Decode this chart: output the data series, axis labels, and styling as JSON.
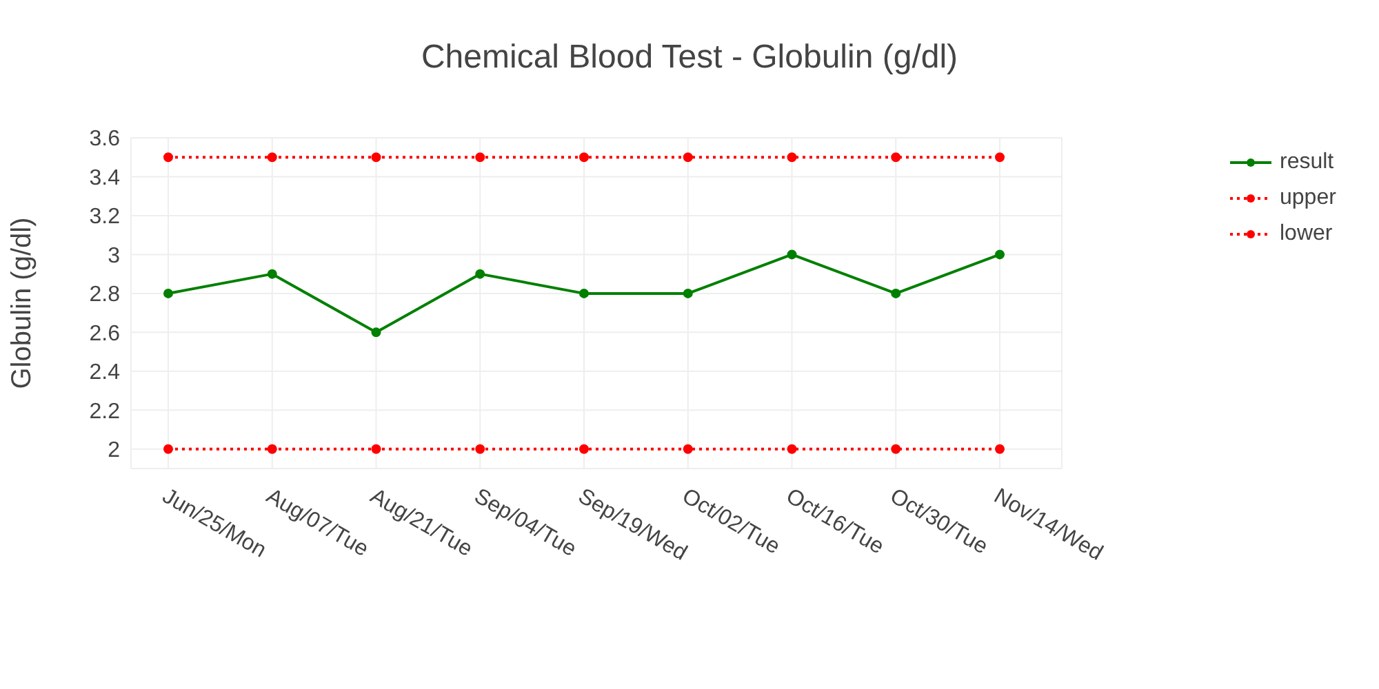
{
  "chart_data": {
    "type": "line",
    "title": "Chemical Blood Test - Globulin  (g/dl)",
    "ylabel": "Globulin  (g/dl)",
    "categories": [
      "Jun/25/Mon",
      "Aug/07/Tue",
      "Aug/21/Tue",
      "Sep/04/Tue",
      "Sep/19/Wed",
      "Oct/02/Tue",
      "Oct/16/Tue",
      "Oct/30/Tue",
      "Nov/14/Wed"
    ],
    "series": [
      {
        "name": "result",
        "color": "#008000",
        "line_style": "solid",
        "values": [
          2.8,
          2.9,
          2.6,
          2.9,
          2.8,
          2.8,
          3.0,
          2.8,
          3.0
        ]
      },
      {
        "name": "upper",
        "color": "#ff0000",
        "line_style": "dotted",
        "values": [
          3.5,
          3.5,
          3.5,
          3.5,
          3.5,
          3.5,
          3.5,
          3.5,
          3.5
        ]
      },
      {
        "name": "lower",
        "color": "#ff0000",
        "line_style": "dotted",
        "values": [
          2,
          2,
          2,
          2,
          2,
          2,
          2,
          2,
          2
        ]
      }
    ],
    "ylim": [
      1.9,
      3.6
    ],
    "yticks": [
      2,
      2.2,
      2.4,
      2.6,
      2.8,
      3,
      3.2,
      3.4,
      3.6
    ],
    "grid": true,
    "legend": "top right",
    "marker": "circle"
  }
}
